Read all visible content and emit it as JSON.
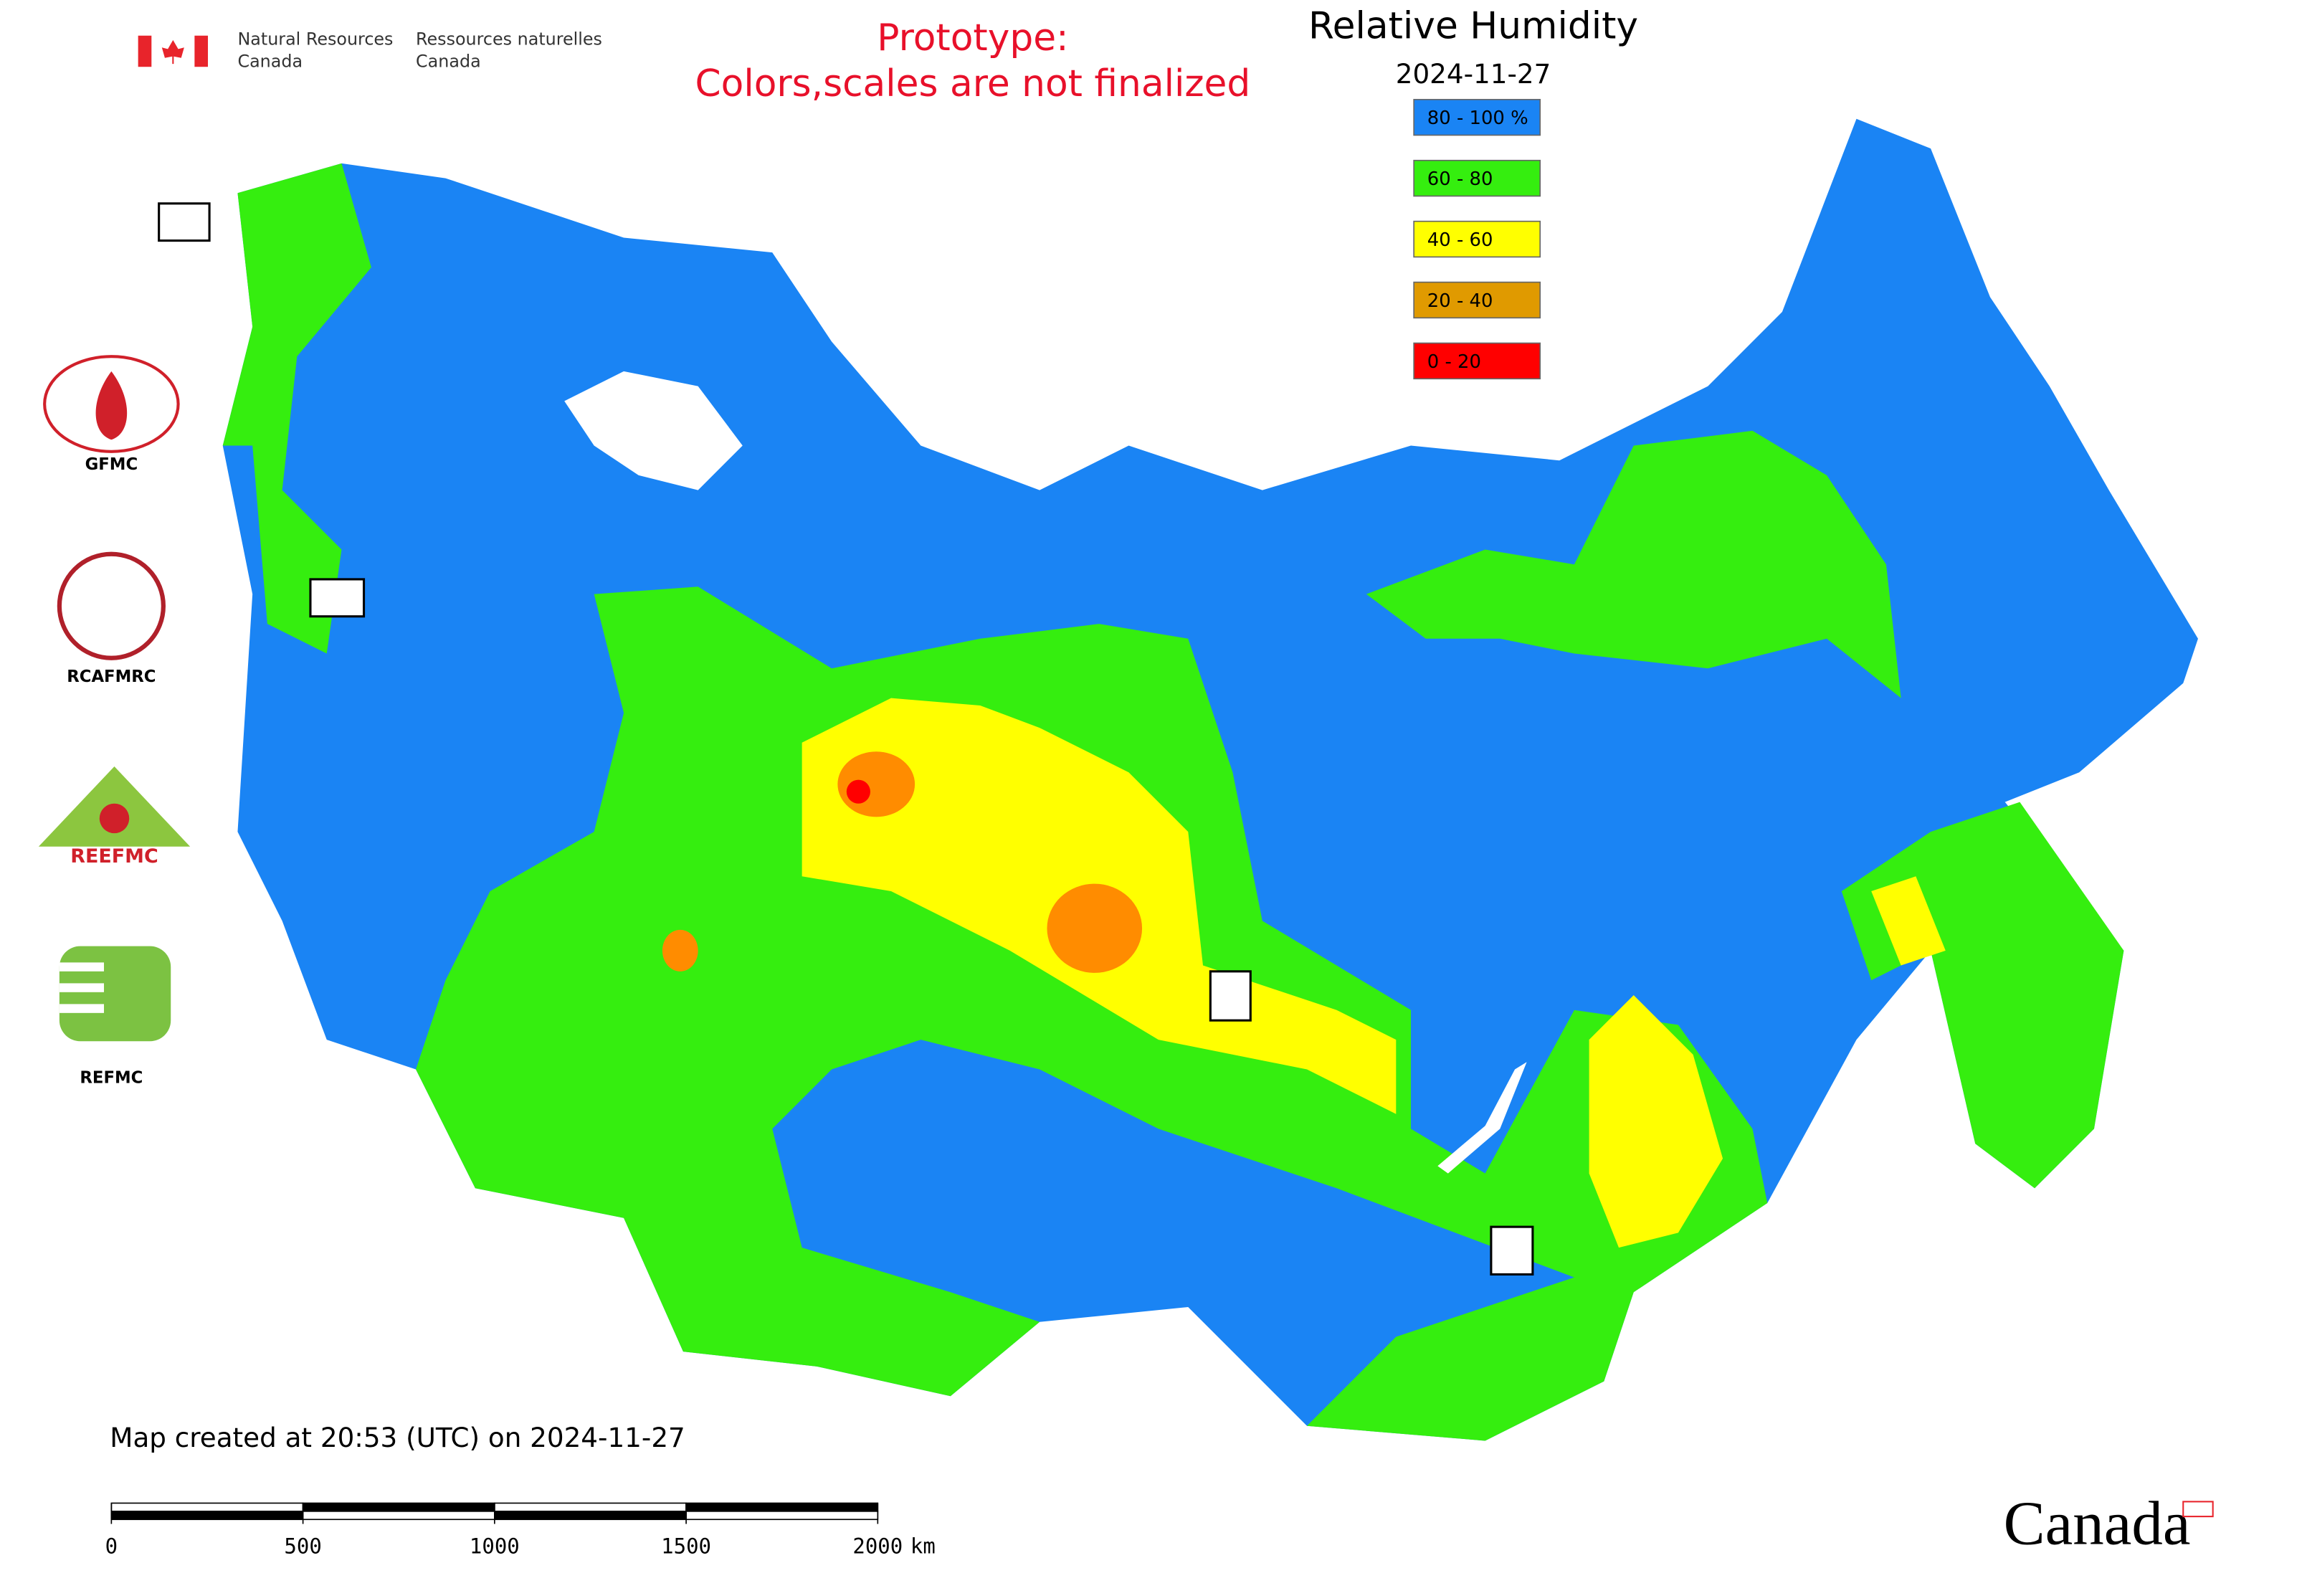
{
  "header": {
    "org_en_1": "Natural Resources",
    "org_en_2": "Canada",
    "org_fr_1": "Ressources naturelles",
    "org_fr_2": "Canada",
    "prototype_1": "Prototype:",
    "prototype_2": "Colors,scales are not finalized"
  },
  "title": "Relative Humidity",
  "date": "2024-11-27",
  "legend": [
    {
      "label": "80 - 100 %",
      "color": "#1a84f4"
    },
    {
      "label": "60 - 80",
      "color": "#35ee0f"
    },
    {
      "label": "40 - 60",
      "color": "#ffff00"
    },
    {
      "label": "20 - 40",
      "color": "#e09a00"
    },
    {
      "label": "0 - 20",
      "color": "#ff0000"
    }
  ],
  "logos": [
    "GFMC",
    "RCAFMRC",
    "REEFMC",
    "REFMC"
  ],
  "footer": "Map created at 20:53 (UTC) on 2024-11-27",
  "scale_bar": {
    "ticks": [
      0,
      500,
      1000,
      1500,
      2000
    ],
    "unit": "km"
  },
  "wordmark": "Canada"
}
